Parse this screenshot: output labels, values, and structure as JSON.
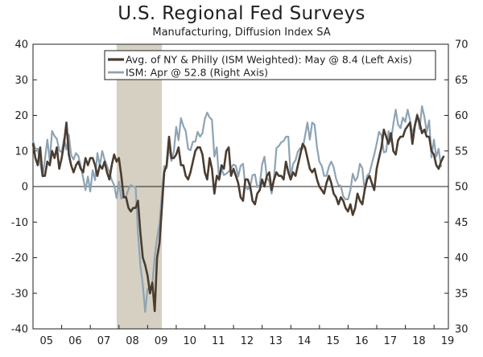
{
  "title": "U.S. Regional Fed Surveys",
  "subtitle": "Manufacturing, Diffusion Index SA",
  "chart_data": {
    "type": "line",
    "title": "U.S. Regional Fed Surveys",
    "subtitle": "Manufacturing, Diffusion Index SA",
    "colors": {
      "series1": "#4a3c30",
      "series2": "#8ea3b3",
      "recession": "#d5d0c2",
      "axis": "#1f1f1f"
    },
    "y_left": {
      "range": [
        -40,
        40
      ],
      "ticks": [
        40,
        30,
        20,
        10,
        0,
        -10,
        -20,
        -30,
        -40
      ]
    },
    "y_right": {
      "range": [
        30,
        70
      ],
      "ticks": [
        70,
        65,
        60,
        55,
        50,
        45,
        40,
        35,
        30
      ]
    },
    "x": {
      "range": [
        2005.0,
        2019.5
      ],
      "tick_labels": [
        "05",
        "06",
        "07",
        "08",
        "09",
        "10",
        "11",
        "12",
        "13",
        "14",
        "15",
        "16",
        "17",
        "18",
        "19"
      ]
    },
    "recession": {
      "start": 2007.92,
      "end": 2009.5
    },
    "legend": [
      "Avg. of NY & Philly (ISM Weighted): May @ 8.4  (Left Axis)",
      "ISM: Apr @ 52.8  (Right Axis)"
    ],
    "series": [
      {
        "name": "Avg. of NY & Philly (ISM Weighted)",
        "axis": "left",
        "x_start": 2005.0,
        "step": 0.0833,
        "values": [
          12,
          8,
          6,
          11,
          3,
          3,
          7,
          6,
          10,
          8,
          11,
          5,
          8,
          12,
          18,
          9,
          6,
          4,
          6,
          7,
          5,
          4,
          8,
          6,
          8,
          8,
          6,
          3,
          6,
          5,
          7,
          4,
          2,
          6,
          9,
          7,
          8,
          3,
          -3,
          -3,
          -6,
          -7,
          -6,
          -6,
          -4,
          -13,
          -20,
          -22,
          -25,
          -30,
          -27,
          -35,
          -20,
          -16,
          -6,
          4,
          6,
          14,
          8,
          8,
          9,
          11,
          6,
          6,
          3,
          2,
          4,
          7,
          10,
          11,
          11,
          9,
          4,
          2,
          8,
          5,
          -2,
          3,
          2,
          6,
          5,
          10,
          11,
          3,
          5,
          3,
          1,
          -3,
          -4,
          2,
          2,
          0,
          -4,
          -5,
          -2,
          -1,
          2,
          0,
          3,
          4,
          -1,
          2,
          4,
          3,
          3,
          2,
          7,
          4,
          2,
          4,
          3,
          6,
          9,
          12,
          11,
          8,
          5,
          4,
          5,
          2,
          0,
          -1,
          -2,
          1,
          3,
          1,
          -2,
          -3,
          -5,
          -3,
          -4,
          -6,
          -7,
          -5,
          -8,
          -6,
          -2,
          -4,
          -5,
          -1,
          2,
          3,
          1,
          -1,
          5,
          8,
          11,
          16,
          14,
          12,
          15,
          10,
          9,
          13,
          14,
          14,
          16,
          17,
          18,
          12,
          17,
          20,
          18,
          15,
          16,
          14,
          14,
          10,
          9,
          6,
          5,
          7,
          8.4
        ]
      },
      {
        "name": "ISM",
        "axis": "right",
        "x_start": 2005.0,
        "step": 0.0833,
        "values": [
          56.4,
          55.3,
          55.3,
          53.3,
          51.4,
          53.8,
          56.6,
          53.6,
          57.8,
          57.1,
          56.7,
          55.1,
          54.8,
          56.7,
          55.2,
          57.3,
          54.4,
          53.8,
          54.7,
          54.3,
          52.9,
          51.2,
          49.5,
          51.4,
          49.3,
          52.3,
          50.9,
          54.7,
          52.9,
          55.0,
          53.8,
          52.9,
          52.0,
          50.9,
          50.2,
          48.4,
          50.7,
          48.3,
          48.6,
          48.6,
          49.6,
          50.2,
          50.0,
          49.9,
          43.4,
          38.9,
          36.2,
          32.4,
          35.6,
          35.8,
          36.3,
          40.1,
          42.8,
          44.8,
          48.9,
          52.9,
          52.6,
          55.7,
          53.6,
          54.9,
          58.4,
          56.5,
          59.6,
          58.5,
          57.8,
          55.3,
          55.1,
          56.3,
          56.3,
          57.7,
          57.0,
          57.5,
          59.5,
          60.4,
          59.7,
          59.4,
          54.2,
          55.5,
          50.9,
          52.5,
          51.6,
          51.8,
          52.1,
          52.6,
          53.1,
          52.9,
          51.4,
          52.9,
          53.2,
          50.0,
          49.6,
          50.0,
          51.6,
          51.7,
          49.9,
          50.2,
          53.1,
          54.2,
          51.3,
          50.7,
          49.0,
          51.2,
          55.4,
          55.7,
          56.2,
          56.4,
          57.0,
          57.0,
          51.3,
          53.2,
          53.7,
          54.9,
          55.4,
          55.3,
          57.1,
          59.0,
          56.6,
          59.0,
          58.7,
          55.5,
          53.5,
          52.9,
          51.5,
          51.5,
          52.8,
          53.5,
          52.7,
          51.1,
          50.2,
          50.1,
          48.6,
          48.2,
          48.2,
          49.5,
          51.8,
          50.8,
          51.3,
          53.2,
          52.6,
          49.4,
          51.5,
          51.9,
          53.2,
          54.5,
          56.0,
          57.7,
          57.2,
          54.8,
          54.9,
          57.8,
          56.3,
          58.8,
          60.8,
          58.7,
          58.2,
          59.7,
          59.1,
          60.8,
          59.3,
          57.3,
          58.7,
          60.2,
          58.1,
          61.3,
          59.8,
          57.7,
          59.3,
          54.1,
          56.6,
          54.2,
          55.3,
          52.8
        ]
      }
    ]
  }
}
